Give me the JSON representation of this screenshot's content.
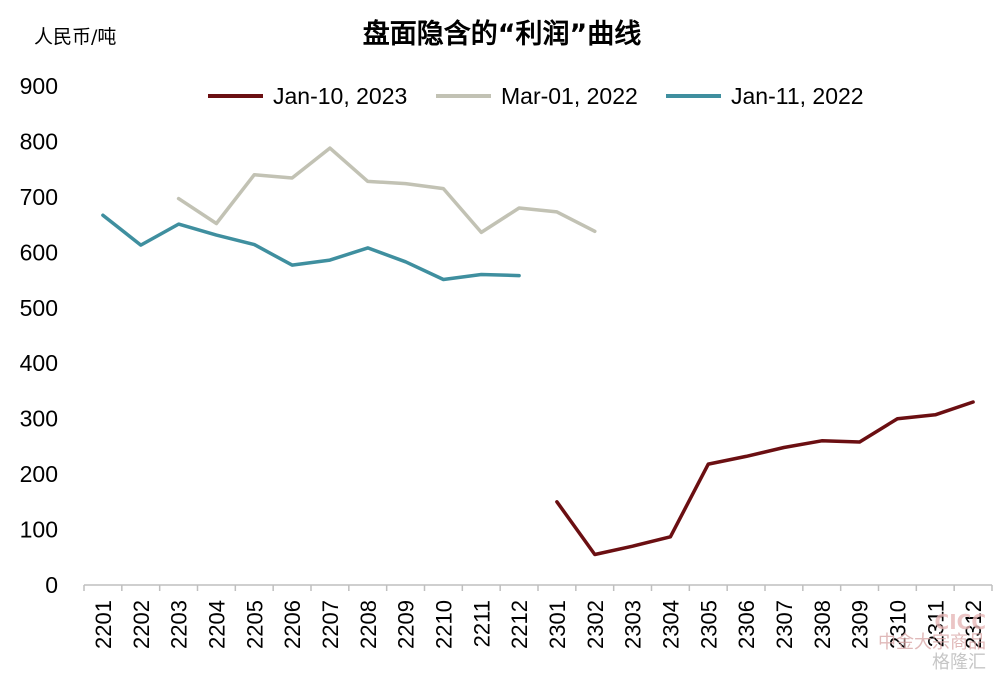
{
  "chart_data": {
    "type": "line",
    "title": "盘面隐含的“利润”曲线",
    "ylabel": "人民币/吨",
    "xlabel": "",
    "ylim": [
      0,
      900
    ],
    "yticks": [
      0,
      100,
      200,
      300,
      400,
      500,
      600,
      700,
      800,
      900
    ],
    "categories": [
      "2201",
      "2202",
      "2203",
      "2204",
      "2205",
      "2206",
      "2207",
      "2208",
      "2209",
      "2210",
      "2211",
      "2212",
      "2301",
      "2302",
      "2303",
      "2304",
      "2305",
      "2306",
      "2307",
      "2308",
      "2309",
      "2310",
      "2311",
      "2312"
    ],
    "grid": false,
    "legend_position": "top",
    "series": [
      {
        "name": "Jan-10, 2023",
        "color": "#6b0f12",
        "values": [
          null,
          null,
          null,
          null,
          null,
          null,
          null,
          null,
          null,
          null,
          null,
          null,
          150,
          55,
          70,
          87,
          218,
          232,
          248,
          260,
          258,
          300,
          307,
          330
        ]
      },
      {
        "name": "Mar-01, 2022",
        "color": "#c2c2b4",
        "values": [
          null,
          null,
          697,
          652,
          740,
          734,
          788,
          728,
          724,
          715,
          636,
          680,
          673,
          638,
          null,
          null,
          null,
          null,
          null,
          null,
          null,
          null,
          null,
          null
        ]
      },
      {
        "name": "Jan-11, 2022",
        "color": "#3f8f9f",
        "values": [
          667,
          613,
          651,
          631,
          614,
          577,
          586,
          608,
          583,
          551,
          560,
          558,
          null,
          null,
          null,
          null,
          null,
          null,
          null,
          null,
          null,
          null,
          null,
          null
        ]
      }
    ]
  },
  "watermark": {
    "logo": "CICC",
    "line1": "中金大宗商品",
    "line2": "格隆汇"
  }
}
